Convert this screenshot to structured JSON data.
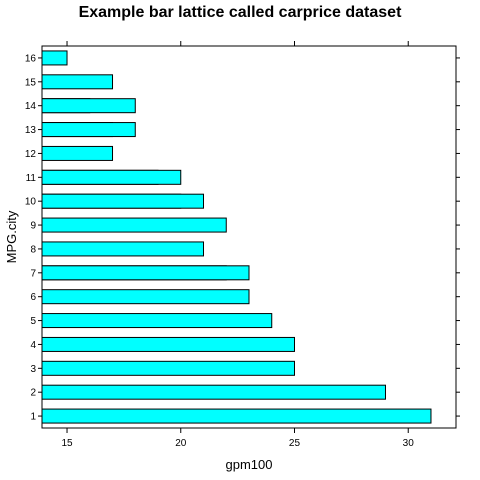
{
  "chart_data": {
    "type": "bar",
    "orientation": "horizontal",
    "title": "Example bar lattice called carprice dataset",
    "xlabel": "gpm100",
    "ylabel": "MPG.city",
    "xlim": [
      13.9,
      32.1
    ],
    "x_ticks": [
      "15",
      "20",
      "25",
      "30"
    ],
    "x_tick_values": [
      15,
      20,
      25,
      30
    ],
    "categories": [
      "1",
      "2",
      "3",
      "4",
      "5",
      "6",
      "7",
      "8",
      "9",
      "10",
      "11",
      "12",
      "13",
      "14",
      "15",
      "16"
    ],
    "bar_color": "#00ffff",
    "bar_edge_color": "#000000",
    "bars": [
      {
        "category": "1",
        "value": 31
      },
      {
        "category": "2",
        "value": 29
      },
      {
        "category": "3",
        "value": 25
      },
      {
        "category": "4",
        "value": 25
      },
      {
        "category": "5",
        "value": 24
      },
      {
        "category": "6",
        "value": 23
      },
      {
        "category": "7",
        "value": 22
      },
      {
        "category": "7",
        "value": 23
      },
      {
        "category": "8",
        "value": 21
      },
      {
        "category": "9",
        "value": 22
      },
      {
        "category": "10",
        "value": 20
      },
      {
        "category": "10",
        "value": 21
      },
      {
        "category": "11",
        "value": 19
      },
      {
        "category": "11",
        "value": 20
      },
      {
        "category": "12",
        "value": 17
      },
      {
        "category": "13",
        "value": 17
      },
      {
        "category": "13",
        "value": 18
      },
      {
        "category": "14",
        "value": 16
      },
      {
        "category": "14",
        "value": 18
      },
      {
        "category": "15",
        "value": 17
      },
      {
        "category": "16",
        "value": 15
      }
    ],
    "grid": false,
    "legend": "none"
  }
}
